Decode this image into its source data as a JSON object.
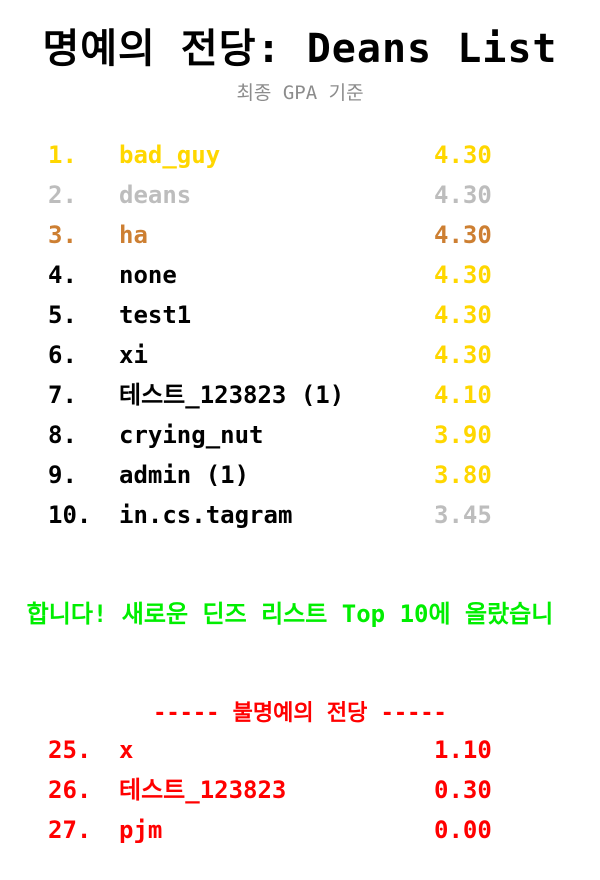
{
  "header": {
    "title": "명예의 전당: Deans List",
    "subtitle": "최종 GPA 기준"
  },
  "colors": {
    "gold": "#ffd700",
    "silver": "#bdbdbd",
    "bronze": "#cd7f32",
    "default_name": "#000000",
    "banner": "#00ee00",
    "shame": "#ff0000",
    "subtitle": "#8c8c8c"
  },
  "hall_of_fame": [
    {
      "rank": "1.",
      "name": "bad_guy",
      "gpa": "4.30",
      "rank_color": "#ffd700",
      "name_color": "#ffd700",
      "gpa_color": "#ffd700"
    },
    {
      "rank": "2.",
      "name": "deans",
      "gpa": "4.30",
      "rank_color": "#bdbdbd",
      "name_color": "#bdbdbd",
      "gpa_color": "#bdbdbd"
    },
    {
      "rank": "3.",
      "name": "ha",
      "gpa": "4.30",
      "rank_color": "#cd7f32",
      "name_color": "#cd7f32",
      "gpa_color": "#cd7f32"
    },
    {
      "rank": "4.",
      "name": "none",
      "gpa": "4.30",
      "rank_color": "#000000",
      "name_color": "#000000",
      "gpa_color": "#ffd700"
    },
    {
      "rank": "5.",
      "name": "test1",
      "gpa": "4.30",
      "rank_color": "#000000",
      "name_color": "#000000",
      "gpa_color": "#ffd700"
    },
    {
      "rank": "6.",
      "name": "xi",
      "gpa": "4.30",
      "rank_color": "#000000",
      "name_color": "#000000",
      "gpa_color": "#ffd700"
    },
    {
      "rank": "7.",
      "name": "테스트_123823 (1)",
      "gpa": "4.10",
      "rank_color": "#000000",
      "name_color": "#000000",
      "gpa_color": "#ffd700"
    },
    {
      "rank": "8.",
      "name": "crying_nut",
      "gpa": "3.90",
      "rank_color": "#000000",
      "name_color": "#000000",
      "gpa_color": "#ffd700"
    },
    {
      "rank": "9.",
      "name": "admin (1)",
      "gpa": "3.80",
      "rank_color": "#000000",
      "name_color": "#000000",
      "gpa_color": "#ffd700"
    },
    {
      "rank": "10.",
      "name": "in.cs.tagram",
      "gpa": "3.45",
      "rank_color": "#000000",
      "name_color": "#000000",
      "gpa_color": "#bdbdbd"
    }
  ],
  "banner": {
    "text": "합니다! 새로운 딘즈 리스트 Top 10에 올랐습니"
  },
  "hall_of_shame": {
    "heading": "----- 불명예의 전당 -----",
    "entries": [
      {
        "rank": "25.",
        "name": "x",
        "gpa": "1.10"
      },
      {
        "rank": "26.",
        "name": "테스트_123823",
        "gpa": "0.30"
      },
      {
        "rank": "27.",
        "name": "pjm",
        "gpa": "0.00"
      }
    ]
  }
}
